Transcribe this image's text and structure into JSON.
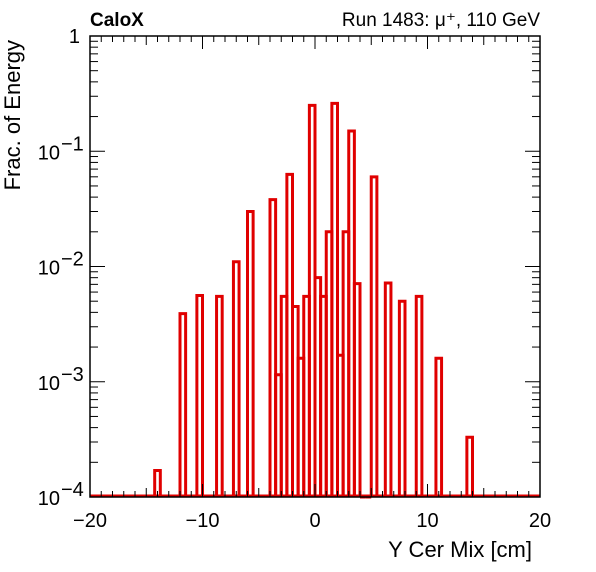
{
  "header": {
    "left_label": "CaloX",
    "right_label": "Run 1483:   μ⁺, 110 GeV"
  },
  "chart_data": {
    "type": "histogram-step",
    "title": "",
    "xlabel": "Y Cer Mix [cm]",
    "ylabel": "Frac. of Energy",
    "xlim": [
      -20,
      20
    ],
    "ylim": [
      0.0001,
      1
    ],
    "yscale": "log",
    "grid": false,
    "x_tick_labels": [
      "−20",
      "−10",
      "0",
      "10",
      "20"
    ],
    "x_tick_values": [
      -20,
      -10,
      0,
      10,
      20
    ],
    "y_tick_labels": [
      {
        "base": "10",
        "exp": "−4",
        "value": 0.0001
      },
      {
        "base": "10",
        "exp": "−3",
        "value": 0.001
      },
      {
        "base": "10",
        "exp": "−2",
        "value": 0.01
      },
      {
        "base": "10",
        "exp": "−1",
        "value": 0.1
      },
      {
        "base": "1",
        "exp": "",
        "value": 1
      }
    ],
    "series": [
      {
        "color": "#e00000",
        "bin_width": 0.5,
        "bins": [
          {
            "x": -14.0,
            "y": 0.00017
          },
          {
            "x": -11.75,
            "y": 0.0039
          },
          {
            "x": -10.25,
            "y": 0.0056
          },
          {
            "x": -8.5,
            "y": 0.0055
          },
          {
            "x": -7.0,
            "y": 0.011
          },
          {
            "x": -5.75,
            "y": 0.03
          },
          {
            "x": -3.75,
            "y": 0.038
          },
          {
            "x": -3.25,
            "y": 0.00115
          },
          {
            "x": -2.75,
            "y": 0.0055
          },
          {
            "x": -2.25,
            "y": 0.063
          },
          {
            "x": -1.75,
            "y": 0.0045
          },
          {
            "x": -1.25,
            "y": 0.0016
          },
          {
            "x": -0.75,
            "y": 0.0055
          },
          {
            "x": -0.25,
            "y": 0.25
          },
          {
            "x": 0.25,
            "y": 0.008
          },
          {
            "x": 0.75,
            "y": 0.0055
          },
          {
            "x": 1.25,
            "y": 0.02
          },
          {
            "x": 1.75,
            "y": 0.26
          },
          {
            "x": 2.25,
            "y": 0.0017
          },
          {
            "x": 2.75,
            "y": 0.02
          },
          {
            "x": 3.25,
            "y": 0.15
          },
          {
            "x": 3.75,
            "y": 0.0071
          },
          {
            "x": 4.25,
            "y": 0.0001
          },
          {
            "x": 4.75,
            "y": 0.0001
          },
          {
            "x": 5.25,
            "y": 0.06
          },
          {
            "x": 6.5,
            "y": 0.0072
          },
          {
            "x": 7.75,
            "y": 0.005
          },
          {
            "x": 9.25,
            "y": 0.0055
          },
          {
            "x": 11.0,
            "y": 0.0016
          },
          {
            "x": 13.75,
            "y": 0.00033
          }
        ]
      }
    ]
  }
}
